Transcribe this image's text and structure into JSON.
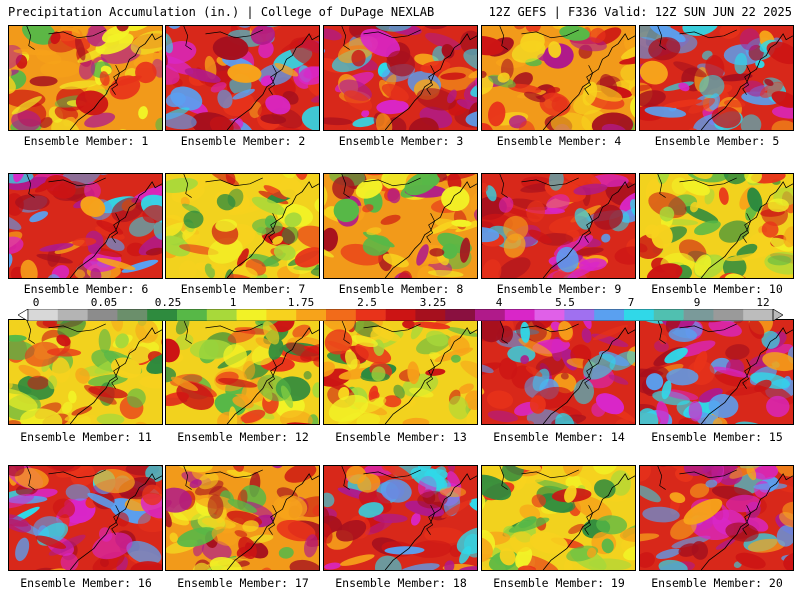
{
  "header": {
    "left": "Precipitation Accumulation (in.) | College of DuPage NEXLAB",
    "right": "12Z GEFS | F336 Valid: 12Z SUN JUN 22 2025"
  },
  "members": [
    {
      "label": "Ensemble Member: 1",
      "palette": "mixed"
    },
    {
      "label": "Ensemble Member: 2",
      "palette": "wet"
    },
    {
      "label": "Ensemble Member: 3",
      "palette": "wet"
    },
    {
      "label": "Ensemble Member: 4",
      "palette": "mixed"
    },
    {
      "label": "Ensemble Member: 5",
      "palette": "wet"
    },
    {
      "label": "Ensemble Member: 6",
      "palette": "wet"
    },
    {
      "label": "Ensemble Member: 7",
      "palette": "dry"
    },
    {
      "label": "Ensemble Member: 8",
      "palette": "mixed"
    },
    {
      "label": "Ensemble Member: 9",
      "palette": "wet"
    },
    {
      "label": "Ensemble Member: 10",
      "palette": "dry"
    },
    {
      "label": "Ensemble Member: 11",
      "palette": "dry"
    },
    {
      "label": "Ensemble Member: 12",
      "palette": "dry"
    },
    {
      "label": "Ensemble Member: 13",
      "palette": "dry"
    },
    {
      "label": "Ensemble Member: 14",
      "palette": "wet"
    },
    {
      "label": "Ensemble Member: 15",
      "palette": "wet"
    },
    {
      "label": "Ensemble Member: 16",
      "palette": "wet"
    },
    {
      "label": "Ensemble Member: 17",
      "palette": "mixed"
    },
    {
      "label": "Ensemble Member: 18",
      "palette": "wet"
    },
    {
      "label": "Ensemble Member: 19",
      "palette": "dry"
    },
    {
      "label": "Ensemble Member: 20",
      "palette": "wet"
    }
  ],
  "colorscale": {
    "tick_labels": [
      "0",
      "0.05",
      "0.25",
      "1",
      "1.75",
      "2.5",
      "3.25",
      "4",
      "5.5",
      "7",
      "9",
      "12"
    ],
    "colors": [
      "#d8d8d8",
      "#b4b4b4",
      "#8c8c8c",
      "#6b8f6b",
      "#2e8b3e",
      "#57b847",
      "#a8d93a",
      "#f2f226",
      "#f7d21e",
      "#f7a31a",
      "#f26b1a",
      "#e8331a",
      "#cc1414",
      "#a6101e",
      "#8a1040",
      "#b01a8a",
      "#d926c8",
      "#e060e8",
      "#a070f0",
      "#5aa0f0",
      "#30d8e8",
      "#50c0b0",
      "#7a9a9a",
      "#9a9a9a",
      "#bcbcbc"
    ]
  }
}
